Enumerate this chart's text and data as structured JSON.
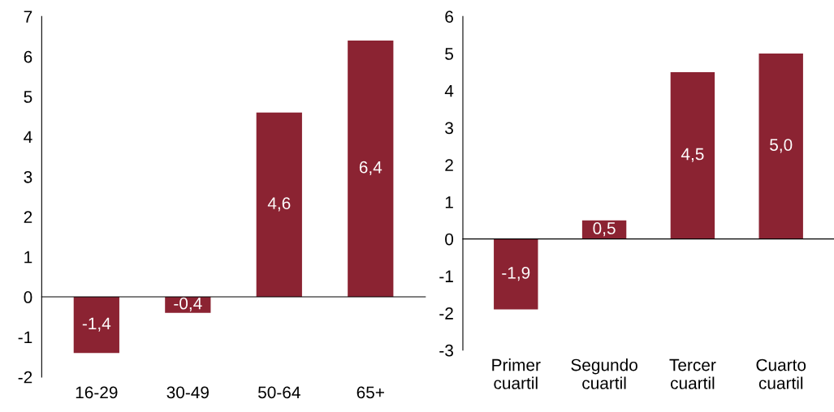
{
  "chart_data": [
    {
      "type": "bar",
      "categories": [
        "16-29",
        "30-49",
        "50-64",
        "65+"
      ],
      "values": [
        -1.4,
        -0.4,
        4.6,
        6.4
      ],
      "value_labels": [
        "-1,4",
        "-0,4",
        "4,6",
        "6,4"
      ],
      "color": "#8b2332",
      "ylim": [
        -2,
        7
      ],
      "yticks": [
        -2,
        -1,
        0,
        1,
        2,
        3,
        4,
        5,
        6,
        7
      ],
      "legend": false
    },
    {
      "type": "bar",
      "categories": [
        "Primer\ncuartil",
        "Segundo\ncuartil",
        "Tercer\ncuartil",
        "Cuarto\ncuartil"
      ],
      "values": [
        -1.9,
        0.5,
        4.5,
        5.0
      ],
      "value_labels": [
        "-1,9",
        "0,5",
        "4,5",
        "5,0"
      ],
      "color": "#8b2332",
      "ylim": [
        -3,
        6
      ],
      "yticks": [
        -3,
        -2,
        -1,
        0,
        1,
        2,
        3,
        4,
        5,
        6
      ],
      "legend": false
    }
  ]
}
